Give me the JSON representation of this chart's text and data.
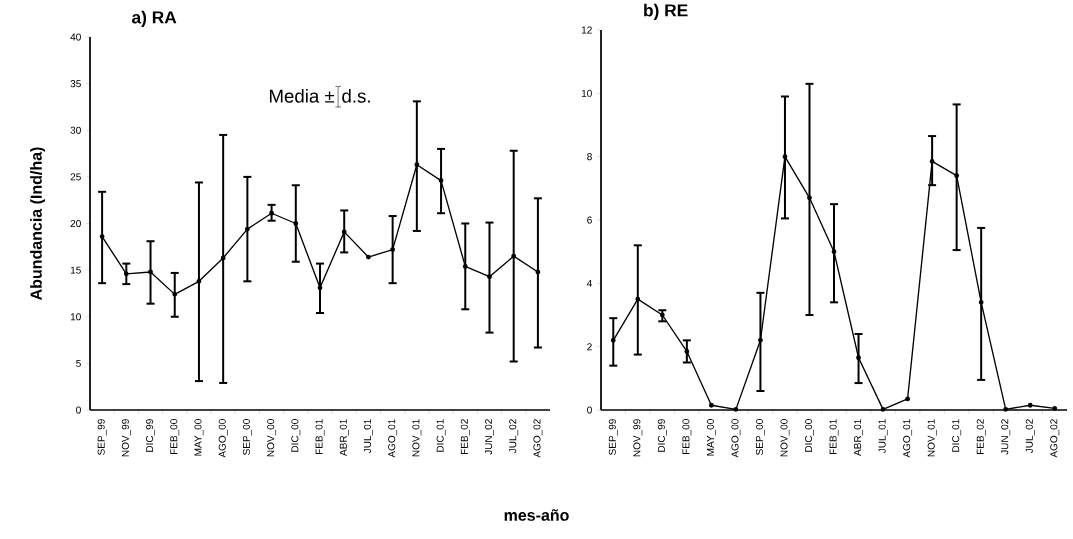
{
  "chart_data": [
    {
      "type": "line",
      "title": "a) RA",
      "ylabel": "Abundancia (Ind/ha)",
      "xlabel": "mes-año",
      "annotations": [
        "Media ±",
        "d.s."
      ],
      "categories": [
        "SEP_99",
        "NOV_99",
        "DIC_99",
        "FEB_00",
        "MAY_00",
        "AGO_00",
        "SEP_00",
        "NOV_00",
        "DIC_00",
        "FEB_01",
        "ABR_01",
        "JUL_01",
        "AGO_01",
        "NOV_01",
        "DIC_01",
        "FEB_02",
        "JUN_02",
        "JUL_02",
        "AGO_02"
      ],
      "values": [
        18.6,
        14.6,
        14.8,
        12.4,
        13.8,
        16.3,
        19.4,
        21.1,
        20.0,
        13.1,
        19.1,
        16.4,
        17.2,
        26.3,
        24.6,
        15.4,
        14.3,
        16.5,
        14.8
      ],
      "errors": [
        [
          13.6,
          23.4
        ],
        [
          13.5,
          15.7
        ],
        [
          11.4,
          18.1
        ],
        [
          10.0,
          14.7
        ],
        [
          3.1,
          24.4
        ],
        [
          2.9,
          29.5
        ],
        [
          13.8,
          25.0
        ],
        [
          20.3,
          22.0
        ],
        [
          15.9,
          24.1
        ],
        [
          10.4,
          15.7
        ],
        [
          16.9,
          21.4
        ],
        null,
        [
          13.6,
          20.8
        ],
        [
          19.2,
          33.1
        ],
        [
          21.1,
          28.0
        ],
        [
          10.8,
          20.0
        ],
        [
          8.3,
          20.1
        ],
        [
          5.2,
          27.8
        ],
        [
          6.7,
          22.7
        ]
      ],
      "color": "#000000",
      "marker": "circle",
      "line_style": "solid",
      "grid": false,
      "ylim": [
        0,
        40
      ],
      "yticks": [
        0,
        5,
        10,
        15,
        20,
        25,
        30,
        35,
        40
      ]
    },
    {
      "type": "line",
      "title": "b) RE",
      "categories": [
        "SEP_99",
        "NOV_99",
        "DIC_99",
        "FEB_00",
        "MAY_00",
        "AGO_00",
        "SEP_00",
        "NOV_00",
        "DIC_00",
        "FEB_01",
        "ABR_01",
        "JUL_01",
        "AGO_01",
        "NOV_01",
        "DIC_01",
        "FEB_02",
        "JUN_02",
        "JUL_02",
        "AGO_02"
      ],
      "values": [
        2.2,
        3.5,
        3.0,
        1.85,
        0.15,
        0.02,
        2.2,
        8.0,
        6.7,
        5.0,
        1.65,
        0.02,
        0.35,
        7.85,
        7.4,
        3.4,
        0.02,
        0.15,
        0.05
      ],
      "errors": [
        [
          1.4,
          2.9
        ],
        [
          1.75,
          5.2
        ],
        [
          2.8,
          3.15
        ],
        [
          1.5,
          2.2
        ],
        null,
        null,
        [
          0.6,
          3.7
        ],
        [
          6.05,
          9.9
        ],
        [
          3.0,
          10.3
        ],
        [
          3.4,
          6.5
        ],
        [
          0.85,
          2.4
        ],
        null,
        null,
        [
          7.1,
          8.65
        ],
        [
          5.05,
          9.65
        ],
        [
          0.95,
          5.75
        ],
        null,
        null,
        null
      ],
      "color": "#000000",
      "marker": "circle",
      "line_style": "solid",
      "grid": false,
      "ylim": [
        0,
        12
      ],
      "yticks": [
        0,
        2,
        4,
        6,
        8,
        10,
        12
      ]
    }
  ]
}
